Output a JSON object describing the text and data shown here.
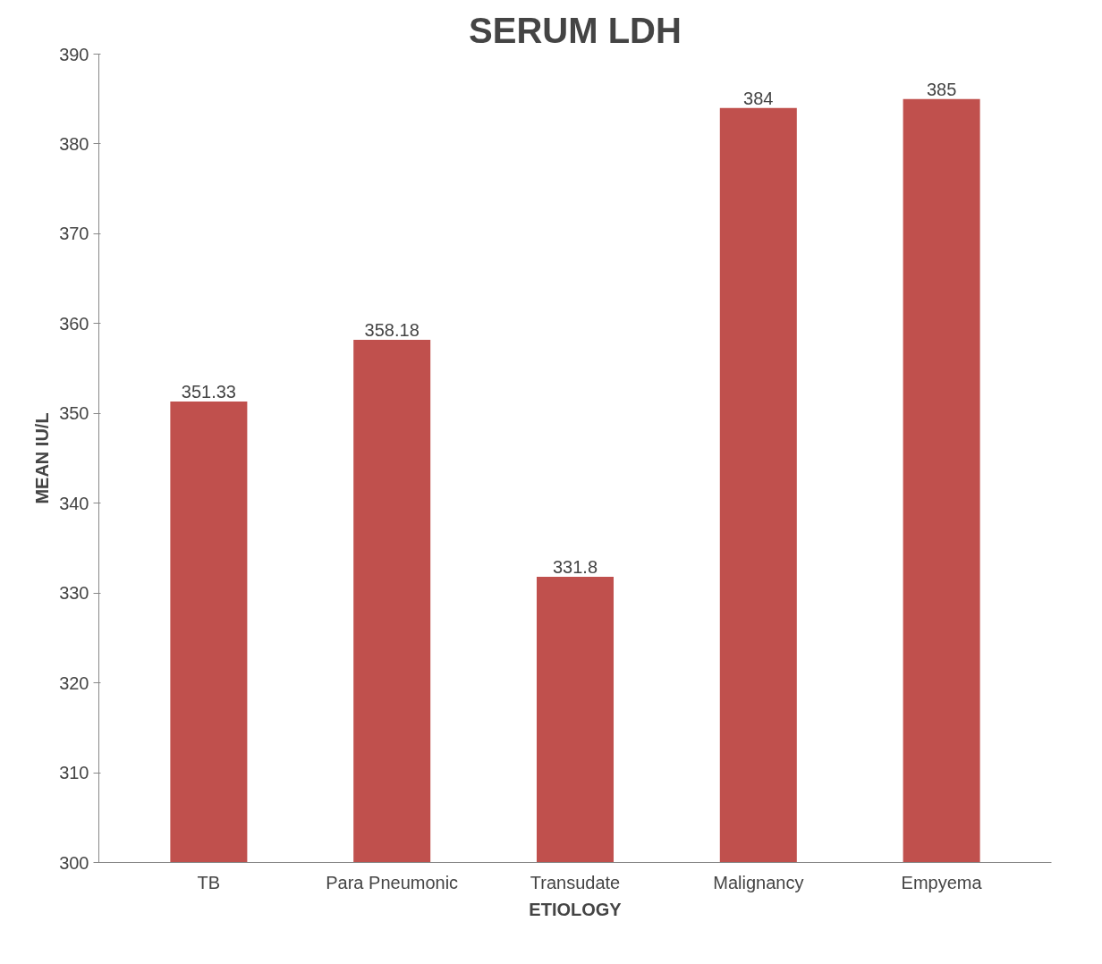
{
  "chart_data": {
    "type": "bar",
    "title": "SERUM LDH",
    "xlabel": "ETIOLOGY",
    "ylabel": "MEAN IU/L",
    "categories": [
      "TB",
      "Para Pneumonic",
      "Transudate",
      "Malignancy",
      "Empyema"
    ],
    "values": [
      351.33,
      358.18,
      331.8,
      384,
      385
    ],
    "color": "#c0504d",
    "ylim": [
      300,
      390
    ],
    "yticks": [
      300,
      310,
      320,
      330,
      340,
      350,
      360,
      370,
      380,
      390
    ],
    "data_labels": true,
    "grid": false
  }
}
